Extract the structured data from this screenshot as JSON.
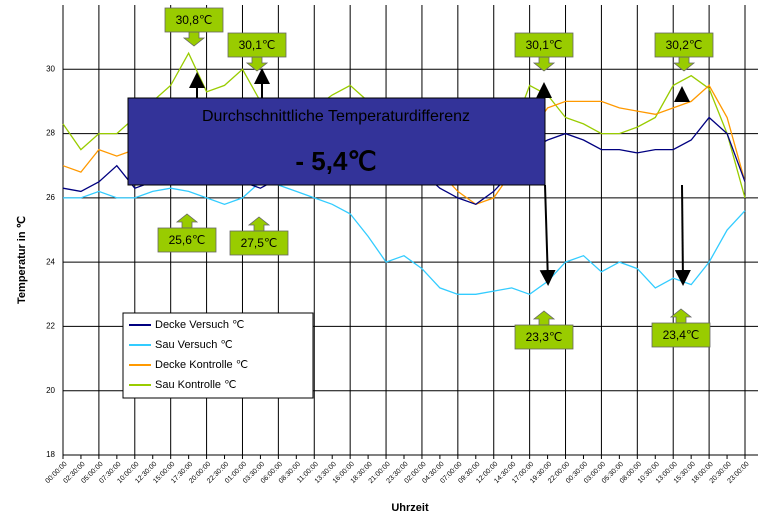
{
  "chart_data": {
    "type": "line",
    "ylabel": "Temperatur in ℃",
    "xlabel": "Uhrzeit",
    "categories": [
      "00:00:00",
      "02:30:00",
      "05:00:00",
      "07:30:00",
      "10:00:00",
      "12:30:00",
      "15:00:00",
      "17:30:00",
      "20:00:00",
      "22:30:00",
      "01:00:00",
      "03:30:00",
      "06:00:00",
      "08:30:00",
      "11:00:00",
      "13:30:00",
      "16:00:00",
      "18:30:00",
      "21:00:00",
      "23:30:00",
      "02:00:00",
      "04:30:00",
      "07:00:00",
      "09:30:00",
      "12:00:00",
      "14:30:00",
      "17:00:00",
      "19:30:00",
      "22:00:00",
      "00:30:00",
      "03:00:00",
      "05:30:00",
      "08:00:00",
      "10:30:00",
      "13:00:00",
      "15:30:00",
      "18:00:00",
      "20:30:00",
      "23:00:00"
    ],
    "series": [
      {
        "name": "Decke Versuch ℃",
        "color": "#000080",
        "values": [
          26.3,
          26.2,
          26.5,
          27,
          26.3,
          26.5,
          26.8,
          27,
          26.8,
          26.5,
          26.5,
          26.3,
          26.6,
          27,
          27.2,
          27.4,
          27.5,
          27.3,
          27.2,
          27,
          26.8,
          26.3,
          26,
          25.8,
          26.2,
          26.8,
          27.5,
          27.8,
          28,
          27.8,
          27.5,
          27.5,
          27.4,
          27.5,
          27.5,
          27.8,
          28.5,
          28,
          26.5
        ]
      },
      {
        "name": "Sau Versuch ℃",
        "color": "#33ccff",
        "values": [
          26,
          26,
          26.2,
          26,
          26,
          26.2,
          26.3,
          26.2,
          26,
          25.8,
          26,
          26.5,
          26.4,
          26.2,
          26,
          25.8,
          25.5,
          24.8,
          24,
          24.2,
          23.8,
          23.2,
          23,
          23,
          23.1,
          23.2,
          23,
          23.4,
          24,
          24.2,
          23.7,
          24,
          23.8,
          23.2,
          23.5,
          23.3,
          24,
          25,
          25.6
        ]
      },
      {
        "name": "Decke Kontrolle ℃",
        "color": "#ff9900",
        "values": [
          27,
          26.8,
          27.5,
          27.3,
          27.5,
          28,
          28.5,
          28.5,
          28.8,
          28.6,
          28.5,
          28.6,
          28.5,
          28.4,
          28.3,
          28.3,
          28.2,
          28,
          27.8,
          27.5,
          27.3,
          26.8,
          26.2,
          25.8,
          26,
          26.8,
          28,
          28.8,
          29,
          29,
          29,
          28.8,
          28.7,
          28.6,
          28.8,
          29,
          29.5,
          28.5,
          26.5
        ]
      },
      {
        "name": "Sau Kontrolle ℃",
        "color": "#99cc00",
        "values": [
          28.3,
          27.5,
          28,
          28,
          28.5,
          29,
          29.5,
          30.5,
          29.3,
          29.5,
          30,
          29,
          28.8,
          29,
          28.8,
          29.2,
          29.5,
          29,
          28.8,
          28.5,
          28,
          27.5,
          27,
          26.5,
          26.8,
          28,
          29.5,
          29.2,
          28.5,
          28.3,
          28,
          28,
          28.2,
          28.5,
          29.5,
          29.8,
          29.4,
          28,
          26
        ]
      }
    ],
    "ylim": [
      18,
      32
    ],
    "yticks": [
      18,
      20,
      22,
      24,
      26,
      28,
      30
    ],
    "grid": true,
    "legend": "lower left",
    "summary": {
      "title": "Durchschnittliche Temperaturdifferenz",
      "value": "- 5,4℃"
    },
    "annotations": [
      {
        "text": "30,8℃"
      },
      {
        "text": "30,1℃"
      },
      {
        "text": "25,6℃"
      },
      {
        "text": "27,5℃"
      },
      {
        "text": "30,1℃"
      },
      {
        "text": "30,2℃"
      },
      {
        "text": "23,3℃"
      },
      {
        "text": "23,4℃"
      }
    ]
  }
}
